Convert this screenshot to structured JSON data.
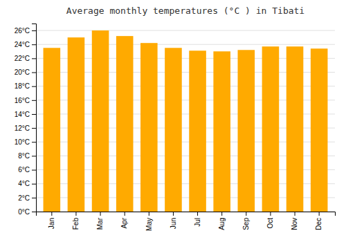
{
  "chart_data": {
    "type": "bar",
    "title": "Average monthly temperatures (°C ) in Tibati",
    "categories": [
      "Jan",
      "Feb",
      "Mar",
      "Apr",
      "May",
      "Jun",
      "Jul",
      "Aug",
      "Sep",
      "Oct",
      "Nov",
      "Dec"
    ],
    "values": [
      23.5,
      25.0,
      26.0,
      25.2,
      24.2,
      23.5,
      23.1,
      23.0,
      23.2,
      23.7,
      23.7,
      23.4
    ],
    "color": "#FFAA00",
    "ylim": [
      0,
      27
    ],
    "yticks": [
      {
        "value": 0,
        "label": "0°C"
      },
      {
        "value": 2,
        "label": "2°C"
      },
      {
        "value": 4,
        "label": "4°C"
      },
      {
        "value": 6,
        "label": "6°C"
      },
      {
        "value": 8,
        "label": "8°C"
      },
      {
        "value": 10,
        "label": "10°C"
      },
      {
        "value": 12,
        "label": "12°C"
      },
      {
        "value": 14,
        "label": "14°C"
      },
      {
        "value": 16,
        "label": "16°C"
      },
      {
        "value": 18,
        "label": "18°C"
      },
      {
        "value": 20,
        "label": "20°C"
      },
      {
        "value": 22,
        "label": "22°C"
      },
      {
        "value": 24,
        "label": "24°C"
      },
      {
        "value": 26,
        "label": "26°C"
      }
    ],
    "grid": true
  }
}
